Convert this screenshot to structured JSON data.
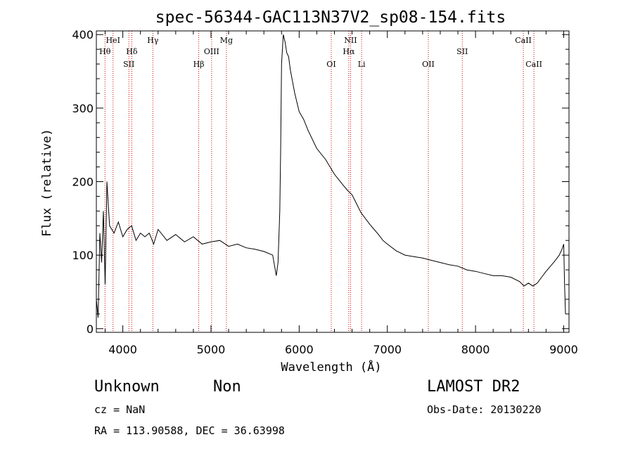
{
  "chart_data": {
    "type": "line",
    "title": "spec-56344-GAC113N37V2_sp08-154.fits",
    "xlabel": "Wavelength (Å)",
    "ylabel": "Flux (relative)",
    "xlim": [
      3700,
      9060
    ],
    "ylim": [
      -5,
      405
    ],
    "xticks": [
      4000,
      5000,
      6000,
      7000,
      8000,
      9000
    ],
    "yticks": [
      0,
      100,
      200,
      300,
      400
    ],
    "grid": false,
    "series": [
      {
        "x": [
          3700,
          3720,
          3740,
          3760,
          3780,
          3800,
          3820,
          3850,
          3900,
          3950,
          4000,
          4050,
          4100,
          4150,
          4200,
          4250,
          4300,
          4350,
          4400,
          4500,
          4600,
          4700,
          4800,
          4900,
          5000,
          5100,
          5200,
          5300,
          5400,
          5500,
          5600,
          5700,
          5740,
          5760,
          5780,
          5790,
          5800,
          5820,
          5840,
          5860,
          5880,
          5900,
          5950,
          6000,
          6050,
          6100,
          6200,
          6300,
          6400,
          6500,
          6550,
          6600,
          6650,
          6700,
          6750,
          6800,
          6850,
          6900,
          6950,
          7000,
          7100,
          7200,
          7300,
          7400,
          7500,
          7600,
          7700,
          7800,
          7900,
          8000,
          8100,
          8200,
          8300,
          8400,
          8500,
          8550,
          8600,
          8650,
          8700,
          8750,
          8800,
          8850,
          8900,
          8950,
          8980,
          9000,
          9010,
          9020
        ],
        "y": [
          40,
          15,
          130,
          90,
          160,
          60,
          200,
          140,
          130,
          145,
          125,
          135,
          140,
          120,
          130,
          125,
          130,
          115,
          135,
          120,
          128,
          118,
          125,
          115,
          118,
          120,
          112,
          115,
          110,
          108,
          105,
          100,
          72,
          90,
          160,
          240,
          360,
          400,
          390,
          375,
          370,
          352,
          320,
          295,
          285,
          270,
          245,
          230,
          210,
          195,
          188,
          182,
          170,
          158,
          150,
          142,
          135,
          128,
          120,
          115,
          106,
          100,
          98,
          96,
          93,
          90,
          87,
          85,
          80,
          78,
          75,
          72,
          72,
          70,
          64,
          58,
          62,
          58,
          62,
          70,
          78,
          85,
          92,
          100,
          108,
          115,
          60,
          20
        ]
      }
    ],
    "annotations": [
      {
        "name": "HeI",
        "wavelength": 3889,
        "row": 0
      },
      {
        "name": "Hθ",
        "wavelength": 3798,
        "row": 1
      },
      {
        "name": "Hδ",
        "wavelength": 4102,
        "row": 1
      },
      {
        "name": "SII",
        "wavelength": 4069,
        "row": 2
      },
      {
        "name": "Hγ",
        "wavelength": 4341,
        "row": 0
      },
      {
        "name": "Hβ",
        "wavelength": 4861,
        "row": 2
      },
      {
        "name": "OIII",
        "wavelength": 5007,
        "row": 1
      },
      {
        "name": "Mg",
        "wavelength": 5175,
        "row": 0
      },
      {
        "name": "NII",
        "wavelength": 6583,
        "row": 0
      },
      {
        "name": "Hα",
        "wavelength": 6563,
        "row": 1
      },
      {
        "name": "OI",
        "wavelength": 6364,
        "row": 2
      },
      {
        "name": "Li",
        "wavelength": 6708,
        "row": 2
      },
      {
        "name": "OII",
        "wavelength": 7465,
        "row": 2
      },
      {
        "name": "SII",
        "wavelength": 7850,
        "row": 1
      },
      {
        "name": "CaII",
        "wavelength": 8542,
        "row": 0
      },
      {
        "name": "CaII",
        "wavelength": 8662,
        "row": 2
      }
    ]
  },
  "info": {
    "class": "Unknown",
    "subclass": "Non",
    "survey": "LAMOST DR2",
    "cz": "cz = NaN",
    "obs_date": "Obs-Date: 20130220",
    "radec": "RA = 113.90588, DEC =  36.63998"
  },
  "colors": {
    "spectrum": "#000000",
    "marker_lines": "#cc0000",
    "background": "#ffffff"
  }
}
